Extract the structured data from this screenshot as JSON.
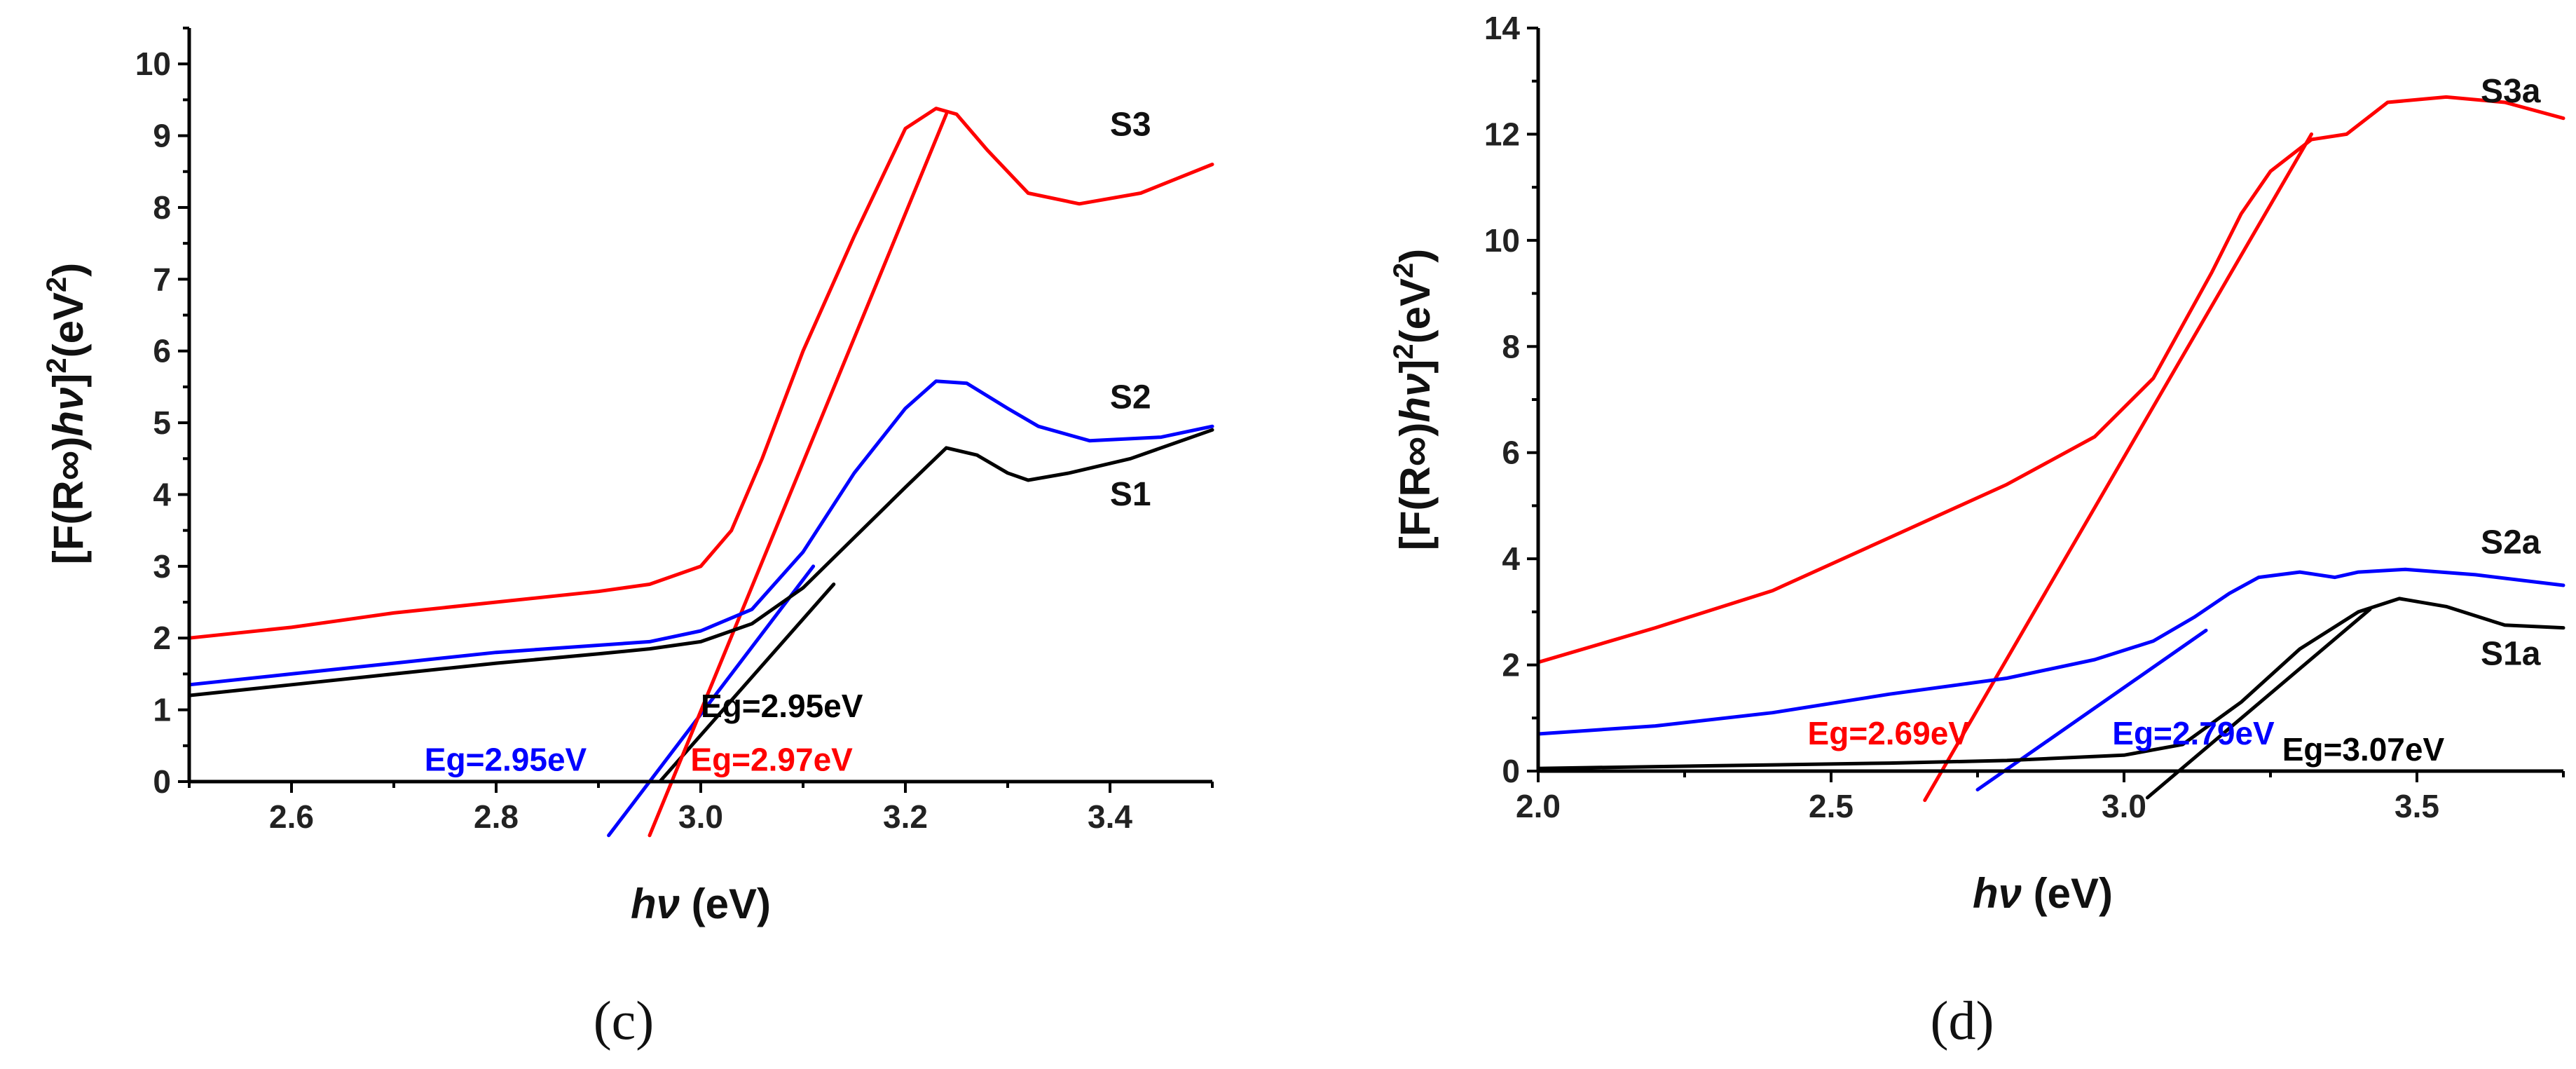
{
  "panels": [
    {
      "panel_label": "(c)",
      "ylabel_main": "[F(R∞)",
      "ylabel_italic": "hν",
      "ylabel_rest": "]",
      "ylabel_sup1": "2",
      "ylabel_unit": "(eV",
      "ylabel_sup2": "2",
      "ylabel_close": ")",
      "xlabel_italic": "hν",
      "xlabel_unit": " (eV)"
    },
    {
      "panel_label": "(d)",
      "ylabel_main": "[F(R∞)",
      "ylabel_italic": "hν",
      "ylabel_rest": "]",
      "ylabel_sup1": "2",
      "ylabel_unit": "(eV",
      "ylabel_sup2": "2",
      "ylabel_close": ")",
      "xlabel_italic": "hν",
      "xlabel_unit": " (eV)"
    }
  ],
  "chart_data": [
    {
      "type": "line",
      "panel": "(c)",
      "xlabel": "hν (eV)",
      "ylabel": "[F(R∞)hν]2(eV2)",
      "xlim": [
        2.5,
        3.5
      ],
      "ylim": [
        0,
        10.5
      ],
      "xticks": [
        2.6,
        2.8,
        3.0,
        3.2,
        3.4
      ],
      "xtick_labels": [
        "2.6",
        "2.8",
        "3.0",
        "3.2",
        "3.4"
      ],
      "yticks": [
        0,
        1,
        2,
        3,
        4,
        5,
        6,
        7,
        8,
        9,
        10
      ],
      "ytick_labels": [
        "0",
        "1",
        "2",
        "3",
        "4",
        "5",
        "6",
        "7",
        "8",
        "9",
        "10"
      ],
      "grid": false,
      "series": [
        {
          "name": "S1",
          "color": "#000000",
          "x": [
            2.5,
            2.6,
            2.7,
            2.8,
            2.9,
            2.95,
            3.0,
            3.05,
            3.1,
            3.15,
            3.2,
            3.24,
            3.27,
            3.3,
            3.32,
            3.36,
            3.42,
            3.5
          ],
          "y": [
            1.2,
            1.35,
            1.5,
            1.65,
            1.78,
            1.85,
            1.95,
            2.2,
            2.7,
            3.4,
            4.1,
            4.65,
            4.55,
            4.3,
            4.2,
            4.3,
            4.5,
            4.9
          ]
        },
        {
          "name": "S2",
          "color": "#0000ff",
          "x": [
            2.5,
            2.6,
            2.7,
            2.8,
            2.9,
            2.95,
            3.0,
            3.05,
            3.1,
            3.15,
            3.2,
            3.23,
            3.26,
            3.3,
            3.33,
            3.38,
            3.45,
            3.5
          ],
          "y": [
            1.35,
            1.5,
            1.65,
            1.8,
            1.9,
            1.95,
            2.1,
            2.4,
            3.2,
            4.3,
            5.2,
            5.58,
            5.55,
            5.2,
            4.95,
            4.75,
            4.8,
            4.95
          ]
        },
        {
          "name": "S3",
          "color": "#ff0000",
          "x": [
            2.5,
            2.6,
            2.7,
            2.8,
            2.9,
            2.95,
            3.0,
            3.03,
            3.06,
            3.1,
            3.15,
            3.2,
            3.23,
            3.25,
            3.28,
            3.32,
            3.37,
            3.43,
            3.5
          ],
          "y": [
            2.0,
            2.15,
            2.35,
            2.5,
            2.65,
            2.75,
            3.0,
            3.5,
            4.5,
            6.0,
            7.6,
            9.1,
            9.38,
            9.3,
            8.8,
            8.2,
            8.05,
            8.2,
            8.6
          ]
        }
      ],
      "fit_lines": [
        {
          "color": "#000000",
          "x": [
            2.96,
            3.13
          ],
          "y": [
            0.0,
            2.75
          ]
        },
        {
          "color": "#0000ff",
          "x": [
            2.91,
            3.11
          ],
          "y": [
            -0.75,
            3.0
          ]
        },
        {
          "color": "#ff0000",
          "x": [
            2.95,
            3.24
          ],
          "y": [
            -0.75,
            9.3
          ]
        }
      ],
      "series_labels": [
        {
          "text": "S3",
          "x": 3.42,
          "y": 9.0
        },
        {
          "text": "S2",
          "x": 3.42,
          "y": 5.2
        },
        {
          "text": "S1",
          "x": 3.42,
          "y": 3.85
        }
      ],
      "annotations": [
        {
          "text": "Eg=2.95eV",
          "color": "#000000",
          "x": 3.0,
          "y": 0.9
        },
        {
          "text": "Eg=2.95eV",
          "color": "#0000ff",
          "x": 2.73,
          "y": 0.15
        },
        {
          "text": "Eg=2.97eV",
          "color": "#ff0000",
          "x": 2.99,
          "y": 0.15
        }
      ]
    },
    {
      "type": "line",
      "panel": "(d)",
      "xlabel": "hν (eV)",
      "ylabel": "[F(R∞)hν]2(eV2)",
      "xlim": [
        2.0,
        3.75
      ],
      "ylim": [
        0,
        14
      ],
      "xticks": [
        2.0,
        2.5,
        3.0,
        3.5
      ],
      "xtick_labels": [
        "2.0",
        "2.5",
        "3.0",
        "3.5"
      ],
      "yticks": [
        0,
        2,
        4,
        6,
        8,
        10,
        12,
        14
      ],
      "ytick_labels": [
        "0",
        "2",
        "4",
        "6",
        "8",
        "10",
        "12",
        "14"
      ],
      "grid": false,
      "series": [
        {
          "name": "S1a",
          "color": "#000000",
          "x": [
            2.0,
            2.3,
            2.6,
            2.8,
            3.0,
            3.1,
            3.2,
            3.3,
            3.4,
            3.47,
            3.55,
            3.65,
            3.75
          ],
          "y": [
            0.05,
            0.1,
            0.15,
            0.2,
            0.3,
            0.5,
            1.3,
            2.3,
            3.0,
            3.25,
            3.1,
            2.75,
            2.7
          ]
        },
        {
          "name": "S2a",
          "color": "#0000ff",
          "x": [
            2.0,
            2.2,
            2.4,
            2.6,
            2.8,
            2.95,
            3.05,
            3.12,
            3.18,
            3.23,
            3.3,
            3.36,
            3.4,
            3.48,
            3.6,
            3.75
          ],
          "y": [
            0.7,
            0.85,
            1.1,
            1.45,
            1.75,
            2.1,
            2.45,
            2.9,
            3.35,
            3.65,
            3.75,
            3.65,
            3.75,
            3.8,
            3.7,
            3.5
          ]
        },
        {
          "name": "S3a",
          "color": "#ff0000",
          "x": [
            2.0,
            2.2,
            2.4,
            2.6,
            2.8,
            2.95,
            3.05,
            3.15,
            3.2,
            3.25,
            3.32,
            3.38,
            3.45,
            3.55,
            3.65,
            3.75
          ],
          "y": [
            2.05,
            2.7,
            3.4,
            4.4,
            5.4,
            6.3,
            7.4,
            9.4,
            10.5,
            11.3,
            11.9,
            12.0,
            12.6,
            12.7,
            12.6,
            12.3
          ]
        }
      ],
      "fit_lines": [
        {
          "color": "#000000",
          "x": [
            3.04,
            3.42
          ],
          "y": [
            -0.5,
            3.05
          ]
        },
        {
          "color": "#0000ff",
          "x": [
            2.75,
            3.14
          ],
          "y": [
            -0.35,
            2.65
          ]
        },
        {
          "color": "#ff0000",
          "x": [
            2.66,
            3.32
          ],
          "y": [
            -0.55,
            12.0
          ]
        }
      ],
      "series_labels": [
        {
          "text": "S3a",
          "x": 3.66,
          "y": 12.6
        },
        {
          "text": "S2a",
          "x": 3.66,
          "y": 4.1
        },
        {
          "text": "S1a",
          "x": 3.66,
          "y": 2.0
        }
      ],
      "annotations": [
        {
          "text": "Eg=2.69eV",
          "color": "#ff0000",
          "x": 2.46,
          "y": 0.5
        },
        {
          "text": "Eg=2.79eV",
          "color": "#0000ff",
          "x": 2.98,
          "y": 0.5
        },
        {
          "text": "Eg=3.07eV",
          "color": "#000000",
          "x": 3.27,
          "y": 0.2
        }
      ]
    }
  ]
}
